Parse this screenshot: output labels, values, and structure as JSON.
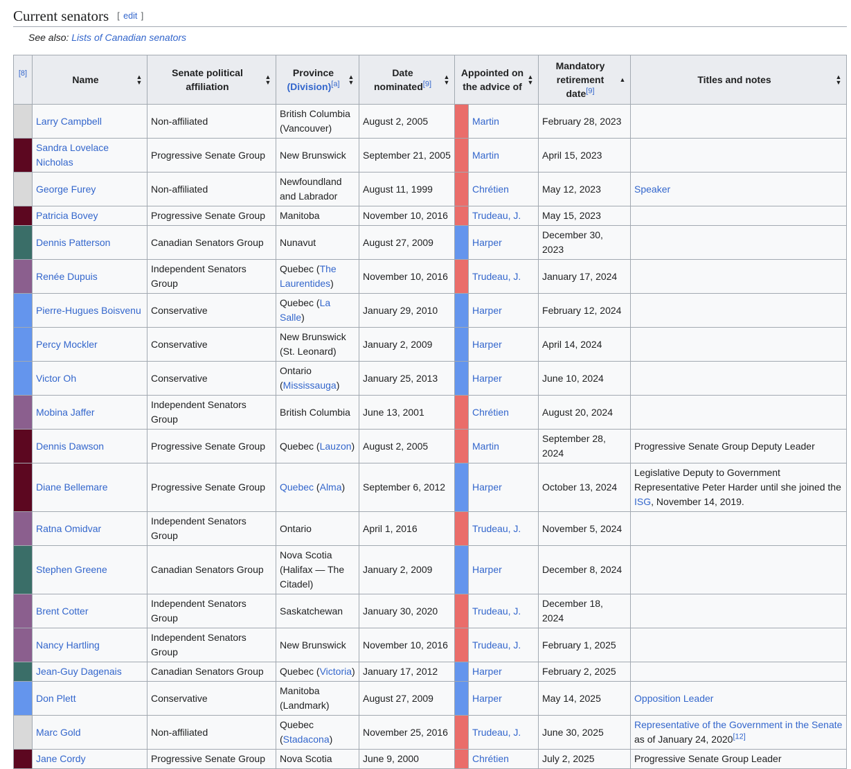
{
  "section": {
    "title": "Current senators",
    "edit_open": "[ ",
    "edit_label": "edit",
    "edit_close": " ]",
    "see_also_prefix": "See also: ",
    "see_also_link": "Lists of Canadian senators"
  },
  "table": {
    "headers": {
      "note_ref": "[8]",
      "name": "Name",
      "affiliation": "Senate political affiliation",
      "province_1": "Province",
      "province_2": "(Division)",
      "province_ref": "[a]",
      "nominated_1": "Date",
      "nominated_2": "nominated",
      "nominated_ref": "[9]",
      "advice_1": "Appointed on",
      "advice_2": "the advice of",
      "retirement_1": "Mandatory",
      "retirement_2": "retirement",
      "retirement_3": "date",
      "retirement_ref": "[9]",
      "notes": "Titles and notes"
    },
    "colors": {
      "Non-affiliated": "#d9d9d9",
      "Progressive Senate Group": "#5c0720",
      "Canadian Senators Group": "#3a6e68",
      "Independent Senators Group": "#8b5f8e",
      "Conservative": "#6495ed",
      "liberal_pm": "#ea6d6a",
      "conservative_pm": "#6495ed"
    },
    "rows": [
      {
        "name": "Larry Campbell",
        "affiliation": "Non-affiliated",
        "province": [
          {
            "t": "British Columbia (Vancouver)"
          }
        ],
        "nominated": "August 2, 2005",
        "advice": "Martin",
        "advice_party": "liberal_pm",
        "retirement": "February 28, 2023",
        "notes": [],
        "h": 49
      },
      {
        "name": "Sandra Lovelace Nicholas",
        "affiliation": "Progressive Senate Group",
        "province": [
          {
            "t": "New Brunswick"
          }
        ],
        "nominated": "September 21, 2005",
        "advice": "Martin",
        "advice_party": "liberal_pm",
        "retirement": "April 15, 2023",
        "notes": [],
        "h": 49
      },
      {
        "name": "George Furey",
        "affiliation": "Non-affiliated",
        "province": [
          {
            "t": "Newfoundland and Labrador"
          }
        ],
        "nominated": "August 11, 1999",
        "advice": "Chrétien",
        "advice_party": "liberal_pm",
        "retirement": "May 12, 2023",
        "notes": [
          {
            "t": "Speaker",
            "link": true
          }
        ],
        "h": 49
      },
      {
        "name": "Patricia Bovey",
        "affiliation": "Progressive Senate Group",
        "province": [
          {
            "t": "Manitoba"
          }
        ],
        "nominated": "November 10, 2016",
        "advice": "Trudeau, J.",
        "advice_party": "liberal_pm",
        "retirement": "May 15, 2023",
        "notes": [],
        "h": 28
      },
      {
        "name": "Dennis Patterson",
        "affiliation": "Canadian Senators Group",
        "province": [
          {
            "t": "Nunavut"
          }
        ],
        "nominated": "August 27, 2009",
        "advice": "Harper",
        "advice_party": "conservative_pm",
        "retirement": "December 30, 2023",
        "notes": [],
        "h": 28
      },
      {
        "name": "Renée Dupuis",
        "affiliation": "Independent Senators Group",
        "province": [
          {
            "t": "Quebec ("
          },
          {
            "t": "The Laurentides",
            "link": true
          },
          {
            "t": ")"
          }
        ],
        "nominated": "November 10, 2016",
        "advice": "Trudeau, J.",
        "advice_party": "liberal_pm",
        "retirement": "January 17, 2024",
        "notes": [],
        "h": 49
      },
      {
        "name": "Pierre-Hugues Boisvenu",
        "affiliation": "Conservative",
        "province": [
          {
            "t": "Quebec ("
          },
          {
            "t": "La Salle",
            "link": true
          },
          {
            "t": ")"
          }
        ],
        "nominated": "January 29, 2010",
        "advice": "Harper",
        "advice_party": "conservative_pm",
        "retirement": "February 12, 2024",
        "notes": [],
        "h": 28
      },
      {
        "name": "Percy Mockler",
        "affiliation": "Conservative",
        "province": [
          {
            "t": "New Brunswick (St. Leonard)"
          }
        ],
        "nominated": "January 2, 2009",
        "advice": "Harper",
        "advice_party": "conservative_pm",
        "retirement": "April 14, 2024",
        "notes": [],
        "h": 49
      },
      {
        "name": "Victor Oh",
        "affiliation": "Conservative",
        "province": [
          {
            "t": "Ontario ("
          },
          {
            "t": "Mississauga",
            "link": true
          },
          {
            "t": ")"
          }
        ],
        "nominated": "January 25, 2013",
        "advice": "Harper",
        "advice_party": "conservative_pm",
        "retirement": "June 10, 2024",
        "notes": [],
        "h": 49
      },
      {
        "name": "Mobina Jaffer",
        "affiliation": "Independent Senators Group",
        "province": [
          {
            "t": "British Columbia"
          }
        ],
        "nominated": "June 13, 2001",
        "advice": "Chrétien",
        "advice_party": "liberal_pm",
        "retirement": "August 20, 2024",
        "notes": [],
        "h": 28
      },
      {
        "name": "Dennis Dawson",
        "affiliation": "Progressive Senate Group",
        "province": [
          {
            "t": "Quebec ("
          },
          {
            "t": "Lauzon",
            "link": true
          },
          {
            "t": ")"
          }
        ],
        "nominated": "August 2, 2005",
        "advice": "Martin",
        "advice_party": "liberal_pm",
        "retirement": "September 28, 2024",
        "notes": [
          {
            "t": "Progressive Senate Group Deputy Leader"
          }
        ],
        "h": 28
      },
      {
        "name": "Diane Bellemare",
        "affiliation": "Progressive Senate Group",
        "province": [
          {
            "t": "Quebec",
            "link": true
          },
          {
            "t": " ("
          },
          {
            "t": "Alma",
            "link": true
          },
          {
            "t": ")"
          }
        ],
        "nominated": "September 6, 2012",
        "advice": "Harper",
        "advice_party": "conservative_pm",
        "retirement": "October 13, 2024",
        "notes": [
          {
            "t": "Legislative Deputy to Government Representative Peter Harder until she joined the "
          },
          {
            "t": "ISG",
            "link": true
          },
          {
            "t": ", November 14, 2019."
          }
        ],
        "h": 70
      },
      {
        "name": "Ratna Omidvar",
        "affiliation": "Independent Senators Group",
        "province": [
          {
            "t": "Ontario"
          }
        ],
        "nominated": "April 1, 2016",
        "advice": "Trudeau, J.",
        "advice_party": "liberal_pm",
        "retirement": "November 5, 2024",
        "notes": [],
        "h": 28
      },
      {
        "name": "Stephen Greene",
        "affiliation": "Canadian Senators Group",
        "province": [
          {
            "t": "Nova Scotia (Halifax — The Citadel)"
          }
        ],
        "nominated": "January 2, 2009",
        "advice": "Harper",
        "advice_party": "conservative_pm",
        "retirement": "December 8, 2024",
        "notes": [],
        "h": 70
      },
      {
        "name": "Brent Cotter",
        "affiliation": "Independent Senators Group",
        "province": [
          {
            "t": "Saskatchewan"
          }
        ],
        "nominated": "January 30, 2020",
        "advice": "Trudeau, J.",
        "advice_party": "liberal_pm",
        "retirement": "December 18, 2024",
        "notes": [],
        "h": 28
      },
      {
        "name": "Nancy Hartling",
        "affiliation": "Independent Senators Group",
        "province": [
          {
            "t": "New Brunswick"
          }
        ],
        "nominated": "November 10, 2016",
        "advice": "Trudeau, J.",
        "advice_party": "liberal_pm",
        "retirement": "February 1, 2025",
        "notes": [],
        "h": 28
      },
      {
        "name": "Jean-Guy Dagenais",
        "affiliation": "Canadian Senators Group",
        "province": [
          {
            "t": "Quebec ("
          },
          {
            "t": "Victoria",
            "link": true
          },
          {
            "t": ")"
          }
        ],
        "nominated": "January 17, 2012",
        "advice": "Harper",
        "advice_party": "conservative_pm",
        "retirement": "February 2, 2025",
        "notes": [],
        "h": 28
      },
      {
        "name": "Don Plett",
        "affiliation": "Conservative",
        "province": [
          {
            "t": "Manitoba (Landmark)"
          }
        ],
        "nominated": "August 27, 2009",
        "advice": "Harper",
        "advice_party": "conservative_pm",
        "retirement": "May 14, 2025",
        "notes": [
          {
            "t": "Opposition Leader",
            "link": true
          }
        ],
        "h": 49
      },
      {
        "name": "Marc Gold",
        "affiliation": "Non-affiliated",
        "province": [
          {
            "t": "Quebec ("
          },
          {
            "t": "Stadacona",
            "link": true
          },
          {
            "t": ")"
          }
        ],
        "nominated": "November 25, 2016",
        "advice": "Trudeau, J.",
        "advice_party": "liberal_pm",
        "retirement": "June 30, 2025",
        "notes": [
          {
            "t": "Representative of the Government in the Senate",
            "link": true
          },
          {
            "t": " as of January 24, 2020"
          },
          {
            "t": "[12]",
            "sup": true
          }
        ],
        "h": 49
      },
      {
        "name": "Jane Cordy",
        "affiliation": "Progressive Senate Group",
        "province": [
          {
            "t": "Nova Scotia"
          }
        ],
        "nominated": "June 9, 2000",
        "advice": "Chrétien",
        "advice_party": "liberal_pm",
        "retirement": "July 2, 2025",
        "notes": [
          {
            "t": "Progressive Senate Group Leader"
          }
        ],
        "h": 28
      }
    ]
  }
}
